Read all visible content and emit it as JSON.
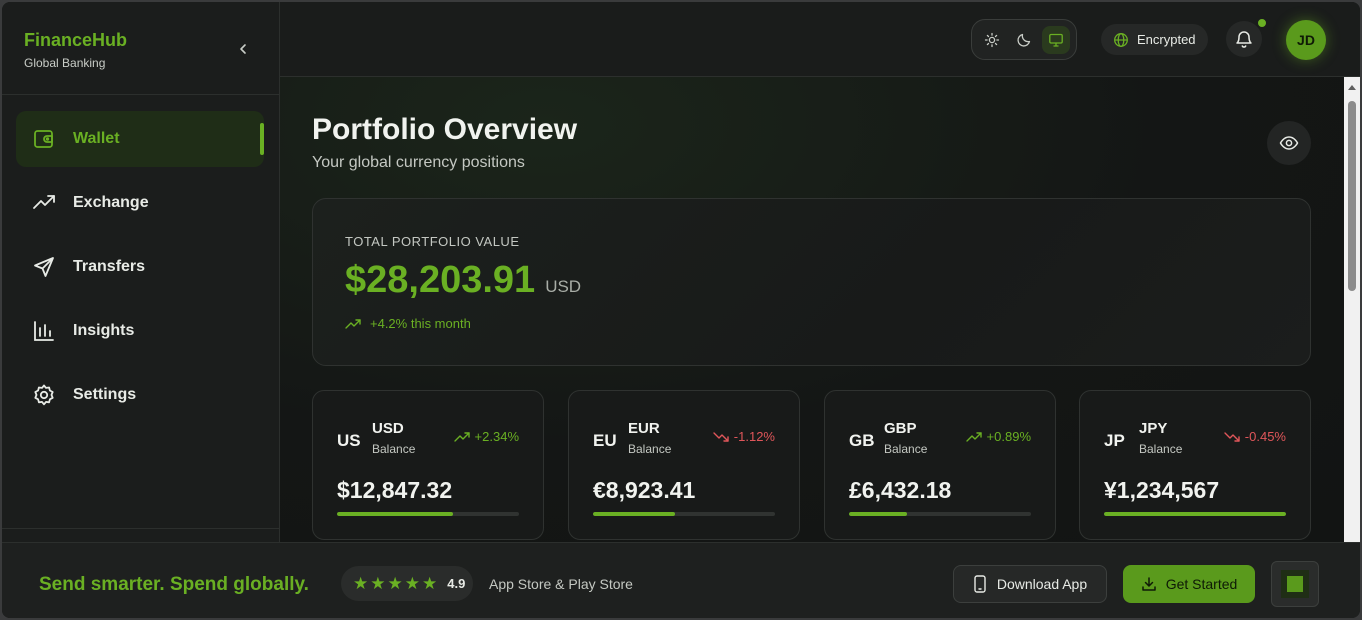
{
  "brand": {
    "name": "FinanceHub",
    "subtitle": "Global Banking"
  },
  "sidebar": {
    "items": [
      {
        "label": "Wallet",
        "icon": "wallet-icon",
        "active": true
      },
      {
        "label": "Exchange",
        "icon": "trending-up-icon",
        "active": false
      },
      {
        "label": "Transfers",
        "icon": "send-icon",
        "active": false
      },
      {
        "label": "Insights",
        "icon": "bar-chart-icon",
        "active": false
      },
      {
        "label": "Settings",
        "icon": "gear-icon",
        "active": false
      }
    ]
  },
  "topbar": {
    "theme_modes": [
      "light",
      "dark",
      "system"
    ],
    "theme_selected": "system",
    "encryption_label": "Encrypted",
    "avatar_initials": "JD"
  },
  "main": {
    "title": "Portfolio Overview",
    "subtitle": "Your global currency positions",
    "total": {
      "label": "TOTAL PORTFOLIO VALUE",
      "amount": "$28,203.91",
      "currency": "USD",
      "change": "+4.2% this month"
    },
    "currencies": [
      {
        "flag": "US",
        "code": "USD",
        "balance_label": "Balance",
        "change": "+2.34%",
        "direction": "up",
        "amount": "$12,847.32",
        "progress": 0.64
      },
      {
        "flag": "EU",
        "code": "EUR",
        "balance_label": "Balance",
        "change": "-1.12%",
        "direction": "down",
        "amount": "€8,923.41",
        "progress": 0.45
      },
      {
        "flag": "GB",
        "code": "GBP",
        "balance_label": "Balance",
        "change": "+0.89%",
        "direction": "up",
        "amount": "£6,432.18",
        "progress": 0.32
      },
      {
        "flag": "JP",
        "code": "JPY",
        "balance_label": "Balance",
        "change": "-0.45%",
        "direction": "down",
        "amount": "¥1,234,567",
        "progress": 1.0
      }
    ]
  },
  "banner": {
    "slogan": "Send smarter. Spend globally.",
    "rating": "4.9",
    "stars": 5,
    "stores": "App Store & Play Store",
    "download_label": "Download App",
    "start_label": "Get Started"
  },
  "colors": {
    "accent": "#6ab023",
    "negative": "#e0565a",
    "background": "#1a1c1b"
  }
}
